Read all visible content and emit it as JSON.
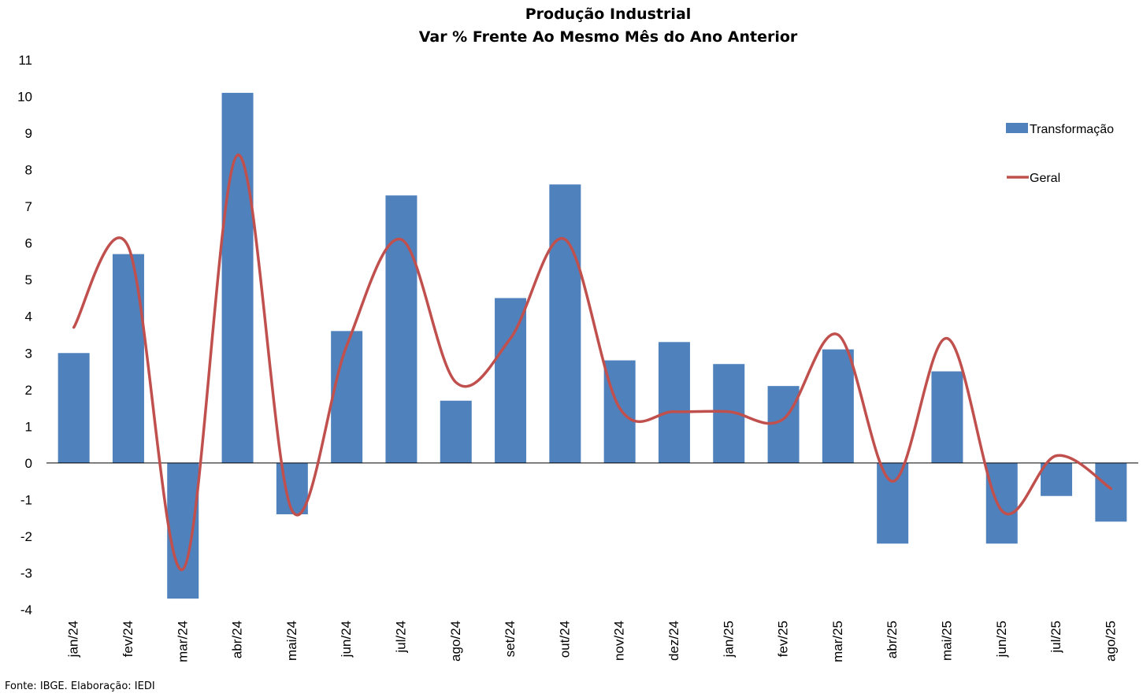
{
  "chart_data": {
    "type": "bar",
    "title": "Produção Industrial",
    "subtitle": "Var % Frente Ao Mesmo Mês do Ano Anterior",
    "xlabel": "",
    "ylabel": "",
    "ylim": [
      -4,
      11
    ],
    "yticks": [
      11,
      10,
      9,
      8,
      7,
      6,
      5,
      4,
      3,
      2,
      1,
      0,
      -1,
      -2,
      -3,
      -4
    ],
    "grid": false,
    "legend": "right",
    "categories": [
      "jan/24",
      "fev/24",
      "mar/24",
      "abr/24",
      "mai/24",
      "jun/24",
      "jul/24",
      "ago/24",
      "set/24",
      "out/24",
      "nov/24",
      "dez/24",
      "jan/25",
      "fev/25",
      "mar/25",
      "abr/25",
      "mai/25",
      "jun/25",
      "jul/25",
      "ago/25"
    ],
    "series": [
      {
        "name": "Transformação",
        "type": "bar",
        "color": "#4F81BD",
        "values": [
          3.0,
          5.7,
          -3.7,
          10.1,
          -1.4,
          3.6,
          7.3,
          1.7,
          4.5,
          7.6,
          2.8,
          3.3,
          2.7,
          2.1,
          3.1,
          -2.2,
          2.5,
          -2.2,
          -0.9,
          -1.6
        ]
      },
      {
        "name": "Geral",
        "type": "line",
        "color": "#C0504D",
        "values": [
          3.7,
          5.9,
          -2.9,
          8.4,
          -1.3,
          3.2,
          6.1,
          2.2,
          3.4,
          6.1,
          1.5,
          1.4,
          1.4,
          1.2,
          3.5,
          -0.5,
          3.4,
          -1.3,
          0.2,
          -0.7
        ]
      }
    ]
  },
  "source_note": "Fonte: IBGE. Elaboração: IEDI"
}
